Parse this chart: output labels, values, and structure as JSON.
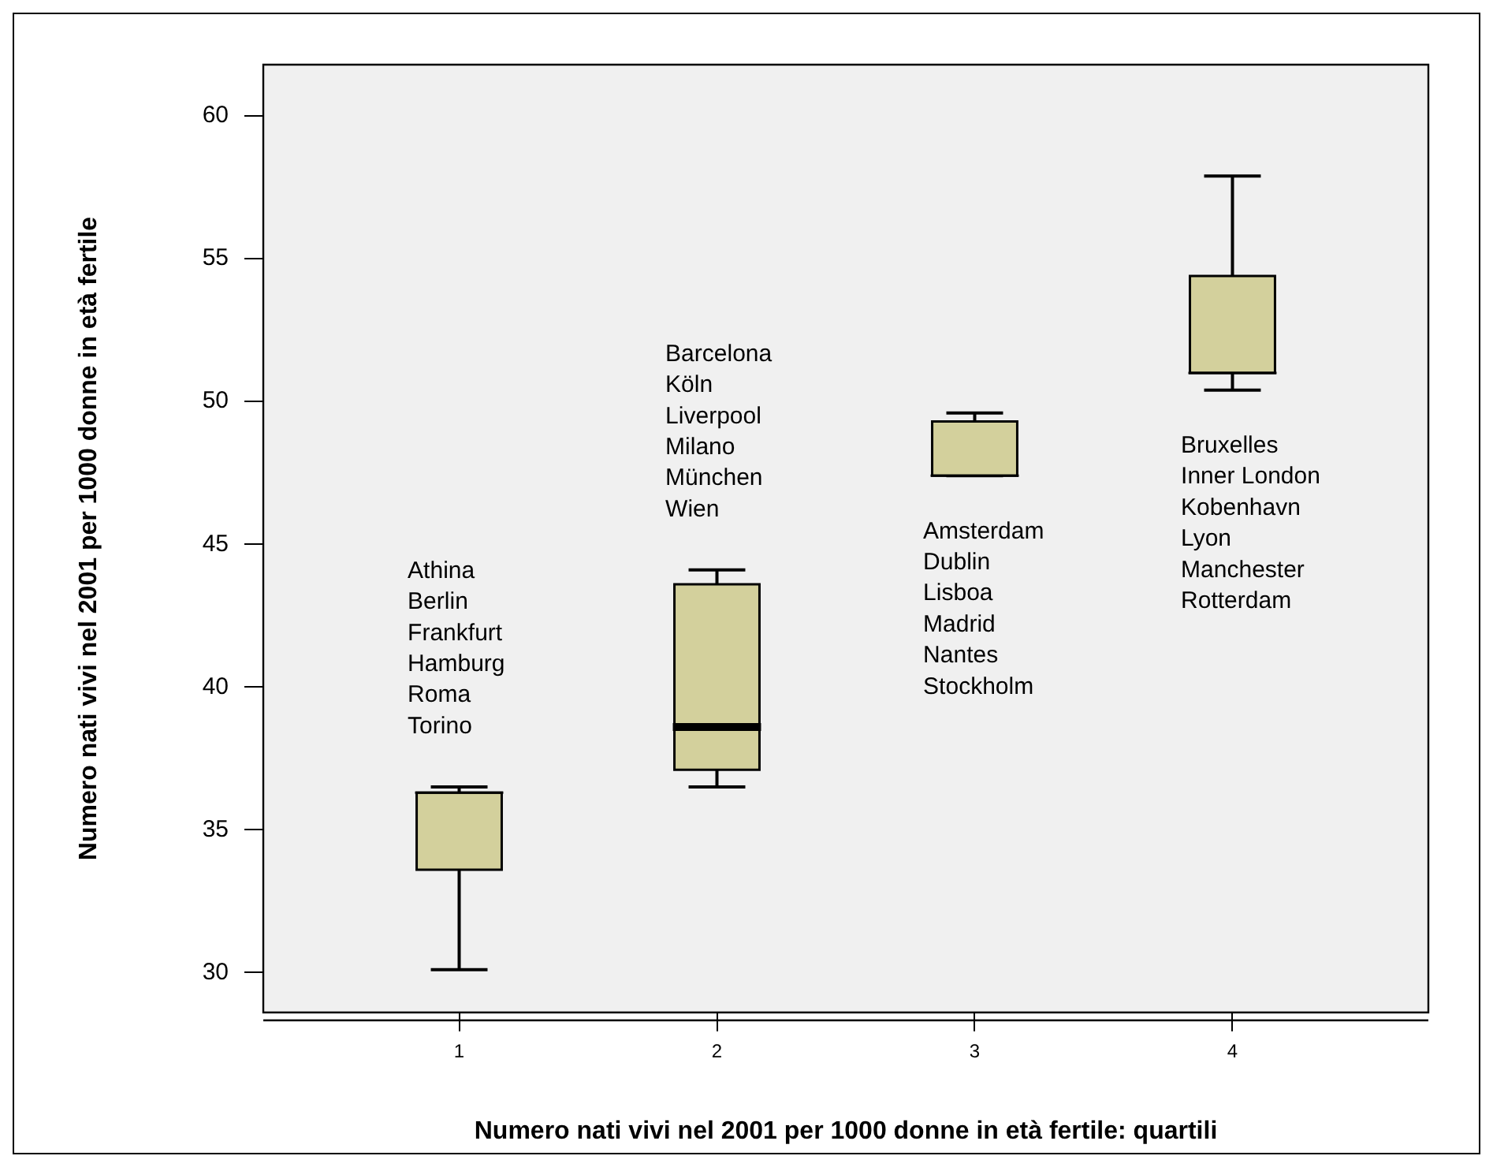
{
  "chart_data": {
    "type": "box",
    "xlabel": "Numero nati vivi nel 2001 per 1000 donne in età fertile: quartili",
    "ylabel": "Numero nati vivi nel 2001 per 1000 donne in età fertile",
    "categories": [
      "1",
      "2",
      "3",
      "4"
    ],
    "color": "#d3d09c",
    "boxes": [
      {
        "low": 30.1,
        "q1": 33.6,
        "median": 36.3,
        "q3": 36.3,
        "high": 36.5
      },
      {
        "low": 36.5,
        "q1": 37.1,
        "median": 38.6,
        "q3": 43.6,
        "high": 44.1
      },
      {
        "low": 47.4,
        "q1": 47.4,
        "median": 47.4,
        "q3": 49.3,
        "high": 49.6
      },
      {
        "low": 50.4,
        "q1": 51.0,
        "median": 51.0,
        "q3": 54.4,
        "high": 57.9
      }
    ],
    "ylim": [
      28.6,
      61.8
    ],
    "yticks": [
      30,
      35,
      40,
      45,
      50,
      55,
      60
    ],
    "annotations": [
      "Athina\nBerlin\nFrankfurt\nHamburg\nRoma\nTorino",
      "Barcelona\nKöln\nLiverpool\nMilano\nMünchen\nWien",
      "Amsterdam\nDublin\nLisboa\nMadrid\nNantes\nStockholm",
      "Bruxelles\nInner London\nKobenhavn\nLyon\nManchester\nRotterdam"
    ]
  }
}
